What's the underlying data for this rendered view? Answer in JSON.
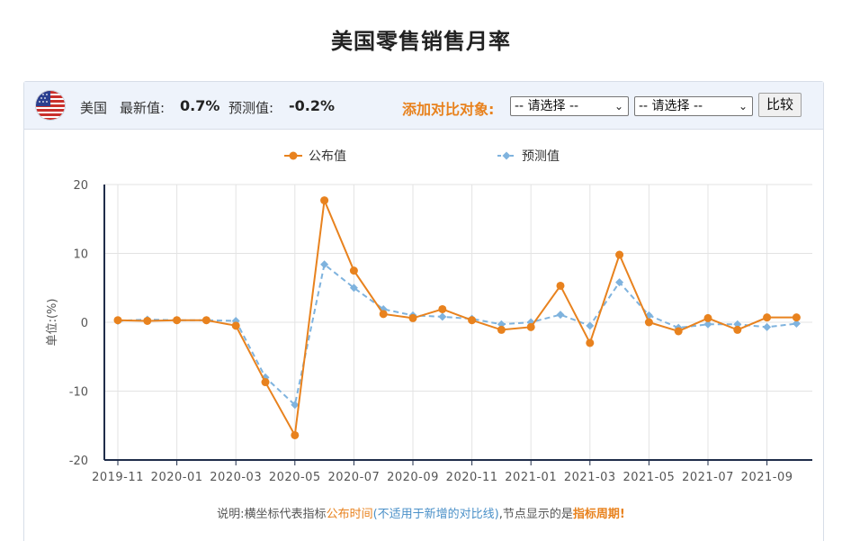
{
  "page": {
    "title": "美国零售销售月率"
  },
  "header": {
    "country": "美国",
    "latest_label": "最新值:",
    "latest_value": "0.7%",
    "forecast_label": "预测值:",
    "forecast_value": "-0.2%",
    "compare_label": "添加对比对象:",
    "select_1": "-- 请选择 --",
    "select_2": "-- 请选择 --",
    "compare_button": "比较"
  },
  "colors": {
    "actual": "#e8821e",
    "forecast": "#7fb3de",
    "axis": "#1f2d4a",
    "grid": "#e3e3e3",
    "flag_red": "#c9302c",
    "flag_blue": "#2a3f8f"
  },
  "chart_data": {
    "type": "line",
    "title": "",
    "xlabel": "",
    "ylabel": "单位:(%)",
    "ylim": [
      -20,
      20
    ],
    "yticks": [
      -20,
      -10,
      0,
      10,
      20
    ],
    "grid": true,
    "legend_position": "top-center",
    "x": [
      "2019-11",
      "2019-12",
      "2020-01",
      "2020-02",
      "2020-03",
      "2020-04",
      "2020-05",
      "2020-06",
      "2020-07",
      "2020-08",
      "2020-09",
      "2020-10",
      "2020-11",
      "2020-12",
      "2021-01",
      "2021-02",
      "2021-03",
      "2021-04",
      "2021-05",
      "2021-06",
      "2021-07",
      "2021-08",
      "2021-09",
      "2021-10"
    ],
    "xtick_labels": [
      "2019-11",
      "2020-01",
      "2020-03",
      "2020-05",
      "2020-07",
      "2020-09",
      "2020-11",
      "2021-01",
      "2021-03",
      "2021-05",
      "2021-07",
      "2021-09"
    ],
    "series": [
      {
        "name": "公布值",
        "style": "solid-circle",
        "values": [
          0.3,
          0.2,
          0.3,
          0.3,
          -0.5,
          -8.7,
          -16.4,
          17.7,
          7.5,
          1.2,
          0.6,
          1.9,
          0.3,
          -1.1,
          -0.7,
          5.3,
          -3.0,
          9.8,
          0.0,
          -1.3,
          0.6,
          -1.1,
          0.7,
          0.7
        ]
      },
      {
        "name": "预测值",
        "style": "dashed-diamond",
        "values": [
          0.2,
          0.4,
          0.3,
          0.3,
          0.2,
          -8.0,
          -12.0,
          8.4,
          5.0,
          1.9,
          1.0,
          0.8,
          0.5,
          -0.3,
          0.0,
          1.1,
          -0.5,
          5.8,
          1.0,
          -0.8,
          -0.3,
          -0.3,
          -0.7,
          -0.2
        ]
      }
    ]
  },
  "footnote": {
    "prefix": "说明:横坐标代表指标",
    "highlight_1": "公布时间",
    "highlight_2": "(不适用于新增的对比线)",
    "middle": ",节点显示的是",
    "highlight_3": "指标周期!"
  }
}
